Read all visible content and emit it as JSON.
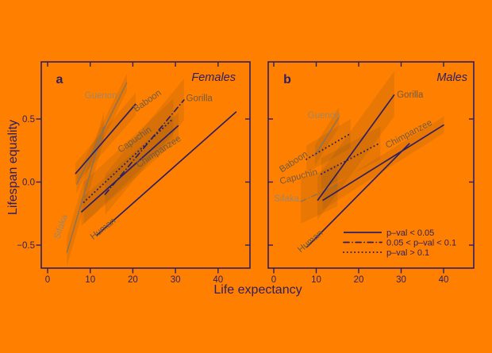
{
  "colors": {
    "background": "#ff8000",
    "axis": "#2e1e63",
    "navy_line": "#2e1e63",
    "gray_line": "#8c7358",
    "label_dark": "#6e5a45",
    "label_light": "#9e8566",
    "band_fill": "#7d4d16"
  },
  "chart_data": {
    "type": "line",
    "xlabel": "Life expectancy",
    "ylabel": "Lifespan equality",
    "xlim": [
      -1.5,
      47.5
    ],
    "ylim": [
      -0.68,
      0.95
    ],
    "xticks": [
      0,
      10,
      20,
      30,
      40
    ],
    "ytick_labels": [
      "0.5",
      "0.0",
      "−0.5"
    ],
    "ytick_values": [
      0.5,
      0.0,
      -0.5
    ],
    "grid": "off",
    "legend": {
      "position": "inside-panel-b-bottom-right",
      "items": [
        {
          "style": "solid",
          "label": "p–val < 0.05"
        },
        {
          "style": "dash-dot",
          "label": "0.05 < p–val < 0.1"
        },
        {
          "style": "dotted",
          "label": "p–val > 0.1"
        }
      ]
    },
    "panels": [
      {
        "letter": "a",
        "title": "Females",
        "series": [
          {
            "name": "Sifaka",
            "x": [
              4.5,
              13.2
            ],
            "y": [
              -0.56,
              0.44
            ],
            "style": "solid",
            "color": "gray",
            "label": {
              "lx": 3.7,
              "ly": -0.336,
              "rot": -72,
              "tone": "light"
            },
            "band": [
              [
                4.5,
                -0.67
              ],
              [
                4.5,
                -0.44
              ],
              [
                13.2,
                0.56
              ],
              [
                13.2,
                0.33
              ]
            ]
          },
          {
            "name": "Guenon",
            "x": [
              6.8,
              18.6
            ],
            "y": [
              -0.02,
              0.79
            ],
            "style": "solid",
            "color": "gray",
            "label": {
              "lx": 12.5,
              "ly": 0.689,
              "rot": 0,
              "tone": "light"
            },
            "band": [
              [
                6.8,
                -0.09
              ],
              [
                6.8,
                0.05
              ],
              [
                18.6,
                0.86
              ],
              [
                18.6,
                0.72
              ]
            ]
          },
          {
            "name": "Baboon",
            "x": [
              6.5,
              20.7
            ],
            "y": [
              0.065,
              0.62
            ],
            "style": "solid",
            "color": "navy",
            "label": {
              "lx": 23.8,
              "ly": 0.651,
              "rot": -35,
              "tone": "dark"
            },
            "band": [
              [
                6.5,
                -0.02
              ],
              [
                6.5,
                0.15
              ],
              [
                20.7,
                0.71
              ],
              [
                20.7,
                0.53
              ]
            ]
          },
          {
            "name": "Capuchin",
            "x": [
              8.5,
              29.5
            ],
            "y": [
              -0.16,
              0.504
            ],
            "style": "dotted",
            "color": "navy",
            "label": {
              "lx": 20.8,
              "ly": 0.343,
              "rot": -35,
              "tone": "dark"
            },
            "band": [
              [
                8.5,
                -0.33
              ],
              [
                8.5,
                0.0
              ],
              [
                29.5,
                0.66
              ],
              [
                29.5,
                0.35
              ]
            ]
          },
          {
            "name": "Gorilla",
            "x": [
              13.5,
              32.0
            ],
            "y": [
              -0.097,
              0.651
            ],
            "style": "dash-dot",
            "color": "navy",
            "label": {
              "lx": 35.6,
              "ly": 0.667,
              "rot": 0,
              "tone": "dark"
            },
            "band": [
              [
                13.5,
                -0.26
              ],
              [
                13.5,
                0.06
              ],
              [
                32.0,
                0.82
              ],
              [
                32.0,
                0.49
              ]
            ]
          },
          {
            "name": "Chimpanzee",
            "x": [
              7.9,
              30.7
            ],
            "y": [
              -0.238,
              0.448
            ],
            "style": "solid",
            "color": "navy",
            "label": {
              "lx": 26.4,
              "ly": 0.248,
              "rot": -33,
              "tone": "dark"
            },
            "band": [
              [
                7.9,
                -0.35
              ],
              [
                7.9,
                -0.13
              ],
              [
                30.7,
                0.55
              ],
              [
                30.7,
                0.34
              ]
            ]
          },
          {
            "name": "Human",
            "x": [
              11.4,
              44.3
            ],
            "y": [
              -0.426,
              0.558
            ],
            "style": "solid",
            "color": "navy",
            "label": {
              "lx": 13.4,
              "ly": -0.362,
              "rot": -38,
              "tone": "dark"
            }
          }
        ]
      },
      {
        "letter": "b",
        "title": "Males",
        "series": [
          {
            "name": "Sifaka",
            "x": [
              6.4,
              15.0
            ],
            "y": [
              -0.154,
              -0.024
            ],
            "style": "dash-dot",
            "color": "gray",
            "label": {
              "lx": 3.0,
              "ly": -0.129,
              "rot": 0,
              "tone": "light"
            },
            "band": [
              [
                6.4,
                -0.33
              ],
              [
                6.4,
                0.02
              ],
              [
                15.0,
                0.14
              ],
              [
                15.0,
                -0.19
              ]
            ]
          },
          {
            "name": "Guenon",
            "x": [
              9.7,
              15.4
            ],
            "y": [
              0.211,
              0.517
            ],
            "style": "solid",
            "color": "gray",
            "label": {
              "lx": 11.8,
              "ly": 0.531,
              "rot": 0,
              "tone": "light"
            },
            "band": [
              [
                9.7,
                0.13
              ],
              [
                9.7,
                0.29
              ],
              [
                15.4,
                0.6
              ],
              [
                15.4,
                0.44
              ]
            ]
          },
          {
            "name": "Baboon",
            "x": [
              7.7,
              18.1
            ],
            "y": [
              0.181,
              0.385
            ],
            "style": "dotted",
            "color": "navy",
            "label": {
              "lx": 5.0,
              "ly": 0.167,
              "rot": -33,
              "tone": "dark"
            },
            "band": [
              [
                7.7,
                0.07
              ],
              [
                7.7,
                0.29
              ],
              [
                18.1,
                0.5
              ],
              [
                18.1,
                0.27
              ]
            ]
          },
          {
            "name": "Capuchin",
            "x": [
              11.2,
              25.1
            ],
            "y": [
              0.064,
              0.311
            ],
            "style": "dotted",
            "color": "navy",
            "label": {
              "lx": 6.0,
              "ly": 0.047,
              "rot": -15,
              "tone": "dark"
            },
            "band": [
              [
                11.2,
                -0.06
              ],
              [
                11.2,
                0.19
              ],
              [
                25.1,
                0.44
              ],
              [
                25.1,
                0.18
              ]
            ]
          },
          {
            "name": "Gorilla",
            "x": [
              10.3,
              28.4
            ],
            "y": [
              -0.146,
              0.693
            ],
            "style": "solid",
            "color": "navy",
            "label": {
              "lx": 32.1,
              "ly": 0.695,
              "rot": 0,
              "tone": "dark"
            },
            "band": [
              [
                10.3,
                -0.3
              ],
              [
                10.3,
                0.04
              ],
              [
                28.4,
                0.88
              ],
              [
                28.4,
                0.52
              ]
            ]
          },
          {
            "name": "Chimpanzee",
            "x": [
              11.5,
              40.1
            ],
            "y": [
              -0.146,
              0.454
            ],
            "style": "solid",
            "color": "navy",
            "label": {
              "lx": 32.1,
              "ly": 0.387,
              "rot": -28,
              "tone": "dark"
            },
            "band": [
              [
                11.5,
                -0.22
              ],
              [
                11.5,
                -0.08
              ],
              [
                40.1,
                0.52
              ],
              [
                40.1,
                0.39
              ]
            ]
          },
          {
            "name": "Human",
            "x": [
              7.7,
              32.0
            ],
            "y": [
              -0.519,
              0.307
            ],
            "style": "solid",
            "color": "navy",
            "label": {
              "lx": 9.0,
              "ly": -0.462,
              "rot": -40,
              "tone": "dark"
            }
          }
        ]
      }
    ]
  }
}
